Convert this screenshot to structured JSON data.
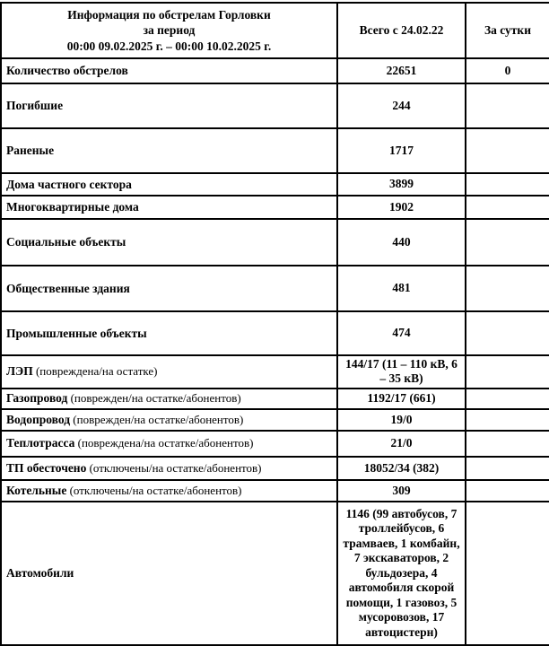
{
  "table": {
    "header": {
      "title_line1": "Информация по обстрелам Горловки",
      "title_line2": "за период",
      "title_line3": "00:00 09.02.2025 г. – 00:00 10.02.2025 г.",
      "col_total": "Всего с 24.02.22",
      "col_daily": "За сутки"
    },
    "rows": [
      {
        "label": "Количество обстрелов",
        "note": "",
        "total": "22651",
        "daily": "0"
      },
      {
        "label": "Погибшие",
        "note": "",
        "total": "244",
        "daily": ""
      },
      {
        "label": "Раненые",
        "note": "",
        "total": "1717",
        "daily": ""
      },
      {
        "label": "Дома частного сектора",
        "note": "",
        "total": "3899",
        "daily": ""
      },
      {
        "label": "Многоквартирные дома",
        "note": "",
        "total": "1902",
        "daily": ""
      },
      {
        "label": "Социальные объекты",
        "note": "",
        "total": "440",
        "daily": ""
      },
      {
        "label": "Общественные здания",
        "note": "",
        "total": "481",
        "daily": ""
      },
      {
        "label": "Промышленные объекты",
        "note": "",
        "total": "474",
        "daily": ""
      },
      {
        "label": "ЛЭП",
        "note": "(повреждена/на остатке)",
        "total": "144/17 (11 – 110 кВ, 6 – 35 кВ)",
        "daily": ""
      },
      {
        "label": "Газопровод",
        "note": "(поврежден/на остатке/абонентов)",
        "total": "1192/17 (661)",
        "daily": ""
      },
      {
        "label": "Водопровод",
        "note": "(поврежден/на остатке/абонентов)",
        "total": "19/0",
        "daily": ""
      },
      {
        "label": "Теплотрасса",
        "note": "(повреждена/на остатке/абонентов)",
        "total": "21/0",
        "daily": ""
      },
      {
        "label": "ТП обесточено",
        "note": "(отключены/на остатке/абонентов)",
        "total": "18052/34 (382)",
        "daily": ""
      },
      {
        "label": "Котельные",
        "note": "(отключены/на остатке/абонентов)",
        "total": "309",
        "daily": ""
      },
      {
        "label": "Автомобили",
        "note": "",
        "total": "1146 (99 автобусов, 7 троллейбусов, 6 трамваев, 1 комбайн, 7 экскаваторов, 2 бульдозера, 4 автомобиля скорой помощи, 1 газовоз, 5 мусоровозов, 17 автоцистерн)",
        "daily": ""
      }
    ]
  }
}
